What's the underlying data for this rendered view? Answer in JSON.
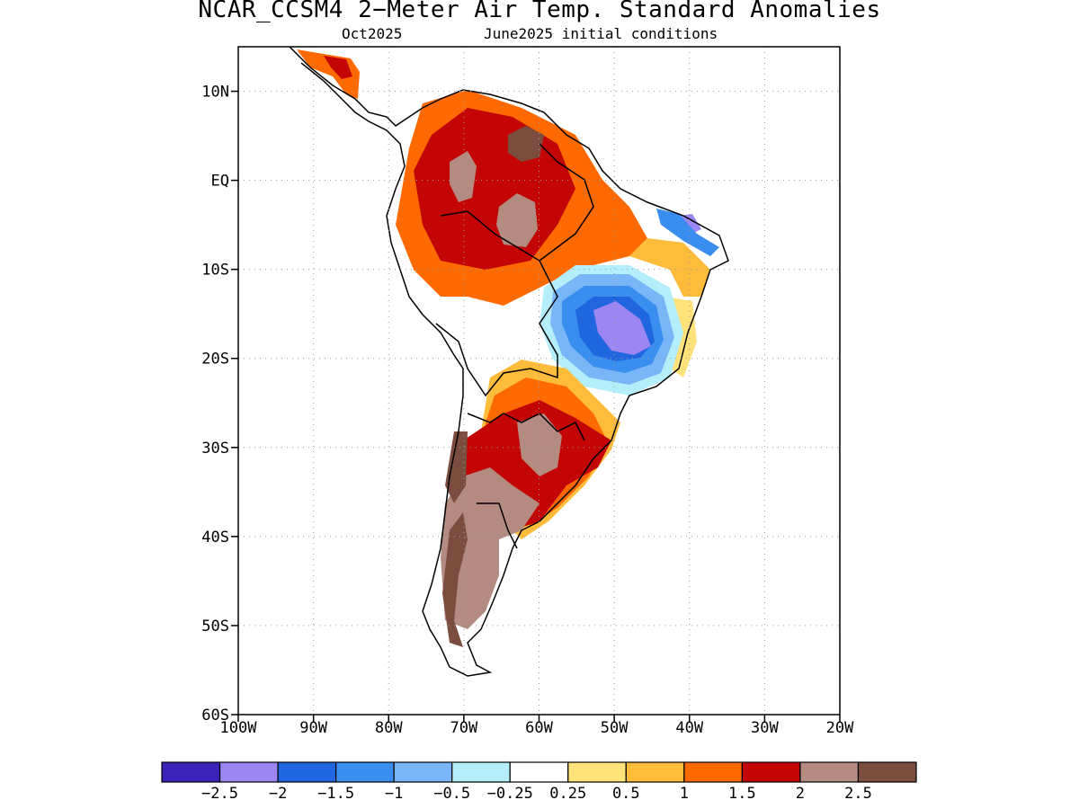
{
  "title": "NCAR_CCSM4 2−Meter Air Temp. Standard Anomalies",
  "subtitle_left": "Oct2025",
  "subtitle_right": "June2025 initial conditions",
  "map": {
    "lon_range": [
      -100,
      -20
    ],
    "lat_range": [
      -60,
      15
    ],
    "lat_ticks": [
      {
        "value": 10,
        "label": "10N"
      },
      {
        "value": 0,
        "label": "EQ"
      },
      {
        "value": -10,
        "label": "10S"
      },
      {
        "value": -20,
        "label": "20S"
      },
      {
        "value": -30,
        "label": "30S"
      },
      {
        "value": -40,
        "label": "40S"
      },
      {
        "value": -50,
        "label": "50S"
      },
      {
        "value": -60,
        "label": "60S"
      }
    ],
    "lon_ticks": [
      {
        "value": -100,
        "label": "100W"
      },
      {
        "value": -90,
        "label": "90W"
      },
      {
        "value": -80,
        "label": "80W"
      },
      {
        "value": -70,
        "label": "70W"
      },
      {
        "value": -60,
        "label": "60W"
      },
      {
        "value": -50,
        "label": "50W"
      },
      {
        "value": -40,
        "label": "40W"
      },
      {
        "value": -30,
        "label": "30W"
      },
      {
        "value": -20,
        "label": "20W"
      }
    ],
    "grid": "dotted"
  },
  "colorbar": {
    "colors": [
      "#3b22b8",
      "#9b86f2",
      "#1f66e0",
      "#3a8ef0",
      "#78b6f7",
      "#b4eefa",
      "#ffffff",
      "#ffe27a",
      "#ffbb3a",
      "#ff6a00",
      "#c30505",
      "#b48b80",
      "#7b4d3e"
    ],
    "labels": [
      "−2.5",
      "−2",
      "−1.5",
      "−1",
      "−0.5",
      "−0.25",
      "0.25",
      "0.5",
      "1",
      "1.5",
      "2",
      "2.5"
    ]
  }
}
